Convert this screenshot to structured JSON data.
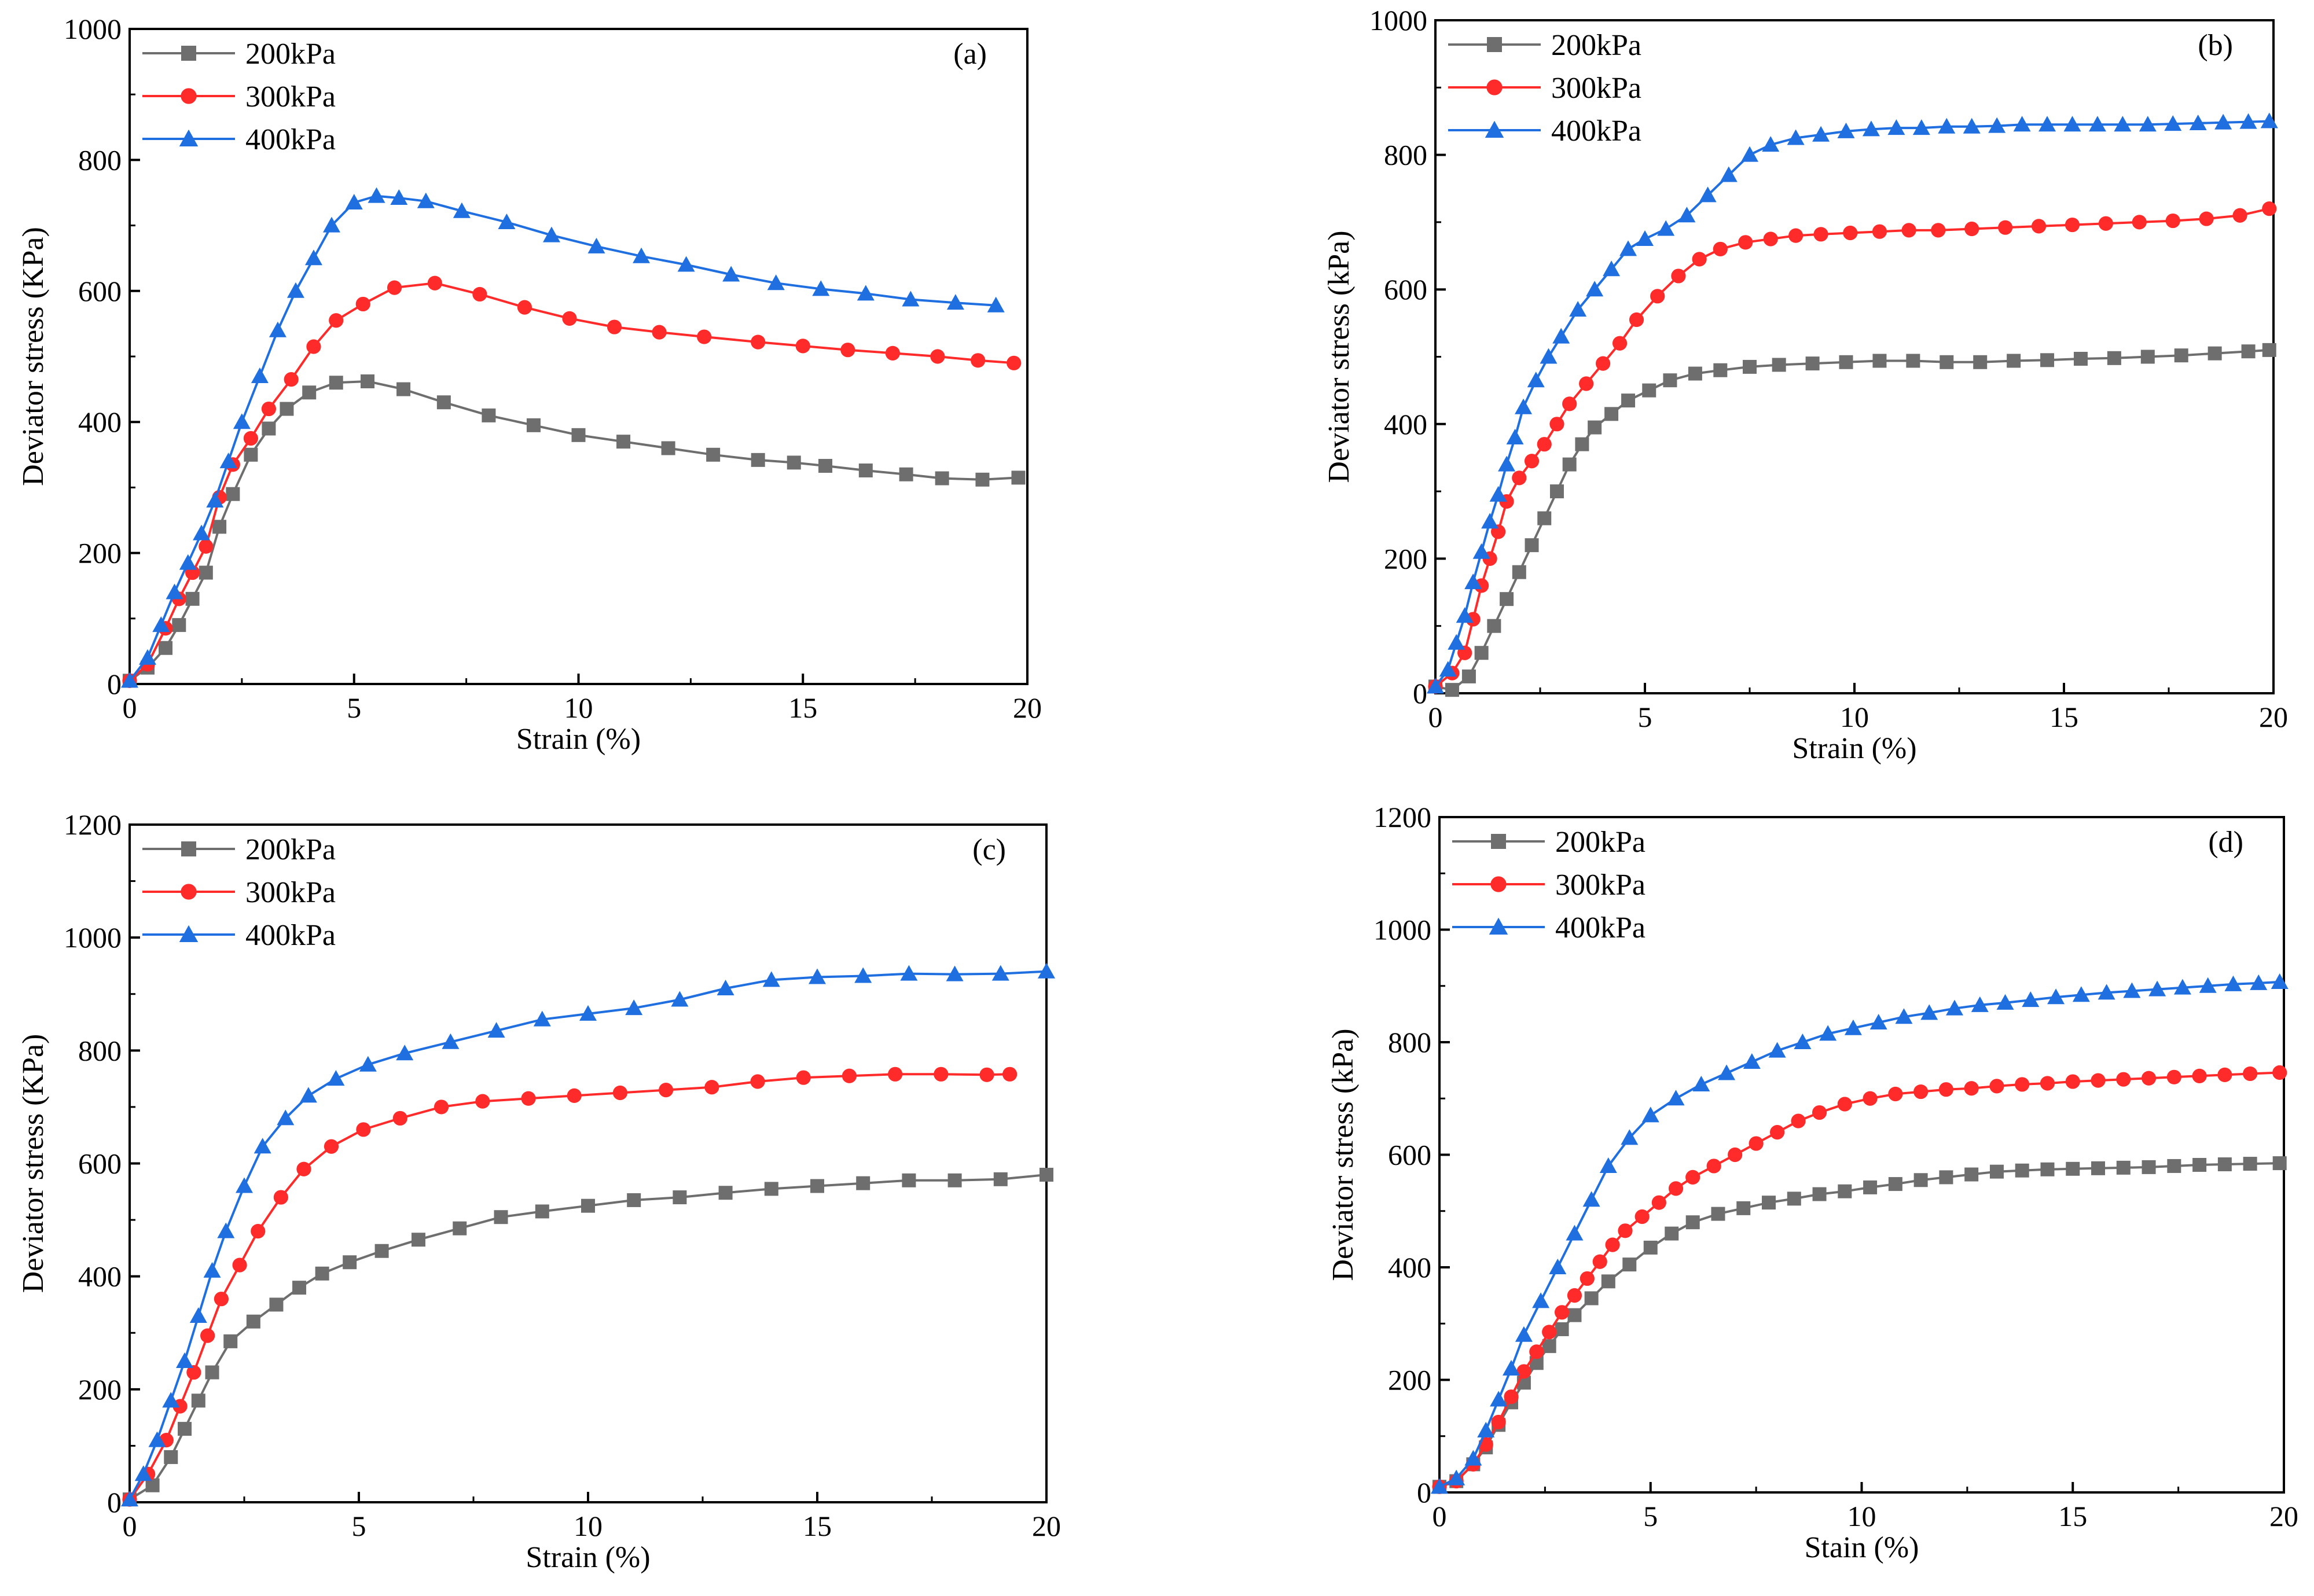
{
  "chart_data": [
    {
      "type": "line",
      "panel_label": "(a)",
      "title": "",
      "xlabel": "Strain (%)",
      "ylabel": "Deviator stress (KPa)",
      "xlim": [
        0,
        20
      ],
      "ylim": [
        0,
        1000
      ],
      "xticks": [
        0,
        5,
        10,
        15,
        20
      ],
      "yticks": [
        0,
        200,
        400,
        600,
        800,
        1000
      ],
      "legend_position": "top-left",
      "series": [
        {
          "name": "200kPa",
          "color": "#6e6e6e",
          "marker": "square",
          "x": [
            0,
            0.4,
            0.8,
            1.1,
            1.4,
            1.7,
            2.0,
            2.3,
            2.7,
            3.1,
            3.5,
            4.0,
            4.6,
            5.3,
            6.1,
            7.0,
            8.0,
            9.0,
            10.0,
            11.0,
            12.0,
            13.0,
            14.0,
            14.8,
            15.5,
            16.4,
            17.3,
            18.1,
            19.0,
            19.8
          ],
          "y": [
            5,
            25,
            55,
            90,
            130,
            170,
            240,
            290,
            350,
            390,
            420,
            445,
            460,
            462,
            450,
            430,
            410,
            395,
            380,
            370,
            360,
            350,
            342,
            338,
            333,
            326,
            320,
            314,
            312,
            315
          ]
        },
        {
          "name": "300kPa",
          "color": "#ff2a2a",
          "marker": "circle",
          "x": [
            0,
            0.4,
            0.8,
            1.1,
            1.4,
            1.7,
            2.0,
            2.3,
            2.7,
            3.1,
            3.6,
            4.1,
            4.6,
            5.2,
            5.9,
            6.8,
            7.8,
            8.8,
            9.8,
            10.8,
            11.8,
            12.8,
            14.0,
            15.0,
            16.0,
            17.0,
            18.0,
            18.9,
            19.7
          ],
          "y": [
            5,
            30,
            85,
            130,
            170,
            210,
            285,
            335,
            375,
            420,
            465,
            515,
            555,
            580,
            605,
            612,
            595,
            575,
            558,
            545,
            537,
            530,
            522,
            516,
            510,
            505,
            500,
            494,
            490
          ]
        },
        {
          "name": "400kPa",
          "color": "#1f6fe0",
          "marker": "triangle",
          "x": [
            0,
            0.4,
            0.7,
            1.0,
            1.3,
            1.6,
            1.9,
            2.2,
            2.5,
            2.9,
            3.3,
            3.7,
            4.1,
            4.5,
            5.0,
            5.5,
            6.0,
            6.6,
            7.4,
            8.4,
            9.4,
            10.4,
            11.4,
            12.4,
            13.4,
            14.4,
            15.4,
            16.4,
            17.4,
            18.4,
            19.3
          ],
          "y": [
            5,
            40,
            90,
            140,
            185,
            230,
            280,
            340,
            400,
            470,
            540,
            600,
            650,
            700,
            735,
            745,
            742,
            737,
            722,
            705,
            685,
            668,
            653,
            640,
            625,
            612,
            603,
            596,
            587,
            582,
            578
          ]
        }
      ]
    },
    {
      "type": "line",
      "panel_label": "(b)",
      "title": "",
      "xlabel": "Strain (%)",
      "ylabel": "Deviator stress (kPa)",
      "xlim": [
        0,
        20
      ],
      "ylim": [
        0,
        1000
      ],
      "xticks": [
        0,
        5,
        10,
        15,
        20
      ],
      "yticks": [
        0,
        200,
        400,
        600,
        800,
        1000
      ],
      "legend_position": "top-left",
      "series": [
        {
          "name": "200kPa",
          "color": "#6e6e6e",
          "marker": "square",
          "x": [
            0,
            0.4,
            0.8,
            1.1,
            1.4,
            1.7,
            2.0,
            2.3,
            2.6,
            2.9,
            3.2,
            3.5,
            3.8,
            4.2,
            4.6,
            5.1,
            5.6,
            6.2,
            6.8,
            7.5,
            8.2,
            9.0,
            9.8,
            10.6,
            11.4,
            12.2,
            13.0,
            13.8,
            14.6,
            15.4,
            16.2,
            17.0,
            17.8,
            18.6,
            19.4,
            19.9
          ],
          "y": [
            10,
            5,
            25,
            60,
            100,
            140,
            180,
            220,
            260,
            300,
            340,
            370,
            395,
            415,
            435,
            450,
            465,
            475,
            480,
            485,
            488,
            490,
            492,
            494,
            494,
            492,
            492,
            494,
            495,
            497,
            498,
            500,
            502,
            505,
            508,
            510
          ]
        },
        {
          "name": "300kPa",
          "color": "#ff2a2a",
          "marker": "circle",
          "x": [
            0,
            0.4,
            0.7,
            0.9,
            1.1,
            1.3,
            1.5,
            1.7,
            2.0,
            2.3,
            2.6,
            2.9,
            3.2,
            3.6,
            4.0,
            4.4,
            4.8,
            5.3,
            5.8,
            6.3,
            6.8,
            7.4,
            8.0,
            8.6,
            9.2,
            9.9,
            10.6,
            11.3,
            12.0,
            12.8,
            13.6,
            14.4,
            15.2,
            16.0,
            16.8,
            17.6,
            18.4,
            19.2,
            19.9
          ],
          "y": [
            10,
            30,
            60,
            110,
            160,
            200,
            240,
            285,
            320,
            345,
            370,
            400,
            430,
            460,
            490,
            520,
            555,
            590,
            620,
            645,
            660,
            670,
            675,
            680,
            682,
            684,
            686,
            688,
            688,
            690,
            692,
            694,
            696,
            698,
            700,
            702,
            705,
            710,
            720
          ]
        },
        {
          "name": "400kPa",
          "color": "#1f6fe0",
          "marker": "triangle",
          "x": [
            0,
            0.3,
            0.5,
            0.7,
            0.9,
            1.1,
            1.3,
            1.5,
            1.7,
            1.9,
            2.1,
            2.4,
            2.7,
            3.0,
            3.4,
            3.8,
            4.2,
            4.6,
            5.0,
            5.5,
            6.0,
            6.5,
            7.0,
            7.5,
            8.0,
            8.6,
            9.2,
            9.8,
            10.4,
            11.0,
            11.6,
            12.2,
            12.8,
            13.4,
            14.0,
            14.6,
            15.2,
            15.8,
            16.4,
            17.0,
            17.6,
            18.2,
            18.8,
            19.4,
            19.9
          ],
          "y": [
            10,
            35,
            75,
            115,
            165,
            210,
            255,
            295,
            340,
            380,
            425,
            465,
            500,
            530,
            570,
            600,
            630,
            660,
            675,
            690,
            710,
            740,
            770,
            800,
            815,
            825,
            830,
            835,
            838,
            840,
            840,
            842,
            842,
            843,
            845,
            845,
            845,
            845,
            845,
            845,
            846,
            847,
            848,
            849,
            850
          ]
        }
      ]
    },
    {
      "type": "line",
      "panel_label": "(c)",
      "title": "",
      "xlabel": "Strain (%)",
      "ylabel": "Deviator stress (KPa)",
      "xlim": [
        0,
        20
      ],
      "ylim": [
        0,
        1200
      ],
      "xticks": [
        0,
        5,
        10,
        15,
        20
      ],
      "yticks": [
        0,
        200,
        400,
        600,
        800,
        1000,
        1200
      ],
      "legend_position": "top-left",
      "series": [
        {
          "name": "200kPa",
          "color": "#6e6e6e",
          "marker": "square",
          "x": [
            0,
            0.5,
            0.9,
            1.2,
            1.5,
            1.8,
            2.2,
            2.7,
            3.2,
            3.7,
            4.2,
            4.8,
            5.5,
            6.3,
            7.2,
            8.1,
            9.0,
            10.0,
            11.0,
            12.0,
            13.0,
            14.0,
            15.0,
            16.0,
            17.0,
            18.0,
            19.0,
            20.0
          ],
          "y": [
            5,
            30,
            80,
            130,
            180,
            230,
            285,
            320,
            350,
            380,
            405,
            425,
            445,
            465,
            485,
            505,
            515,
            525,
            535,
            540,
            548,
            555,
            560,
            565,
            570,
            570,
            572,
            580
          ]
        },
        {
          "name": "300kPa",
          "color": "#ff2a2a",
          "marker": "circle",
          "x": [
            0,
            0.4,
            0.8,
            1.1,
            1.4,
            1.7,
            2.0,
            2.4,
            2.8,
            3.3,
            3.8,
            4.4,
            5.1,
            5.9,
            6.8,
            7.7,
            8.7,
            9.7,
            10.7,
            11.7,
            12.7,
            13.7,
            14.7,
            15.7,
            16.7,
            17.7,
            18.7,
            19.2
          ],
          "y": [
            5,
            50,
            110,
            170,
            230,
            295,
            360,
            420,
            480,
            540,
            590,
            630,
            660,
            680,
            700,
            710,
            715,
            720,
            725,
            730,
            735,
            745,
            752,
            755,
            758,
            758,
            757,
            758
          ]
        },
        {
          "name": "400kPa",
          "color": "#1f6fe0",
          "marker": "triangle",
          "x": [
            0,
            0.3,
            0.6,
            0.9,
            1.2,
            1.5,
            1.8,
            2.1,
            2.5,
            2.9,
            3.4,
            3.9,
            4.5,
            5.2,
            6.0,
            7.0,
            8.0,
            9.0,
            10.0,
            11.0,
            12.0,
            13.0,
            14.0,
            15.0,
            16.0,
            17.0,
            18.0,
            19.0,
            20.0
          ],
          "y": [
            5,
            50,
            110,
            180,
            250,
            330,
            410,
            480,
            560,
            630,
            680,
            720,
            750,
            775,
            795,
            815,
            835,
            855,
            865,
            875,
            890,
            910,
            925,
            930,
            932,
            936,
            935,
            936,
            940
          ]
        }
      ]
    },
    {
      "type": "line",
      "panel_label": "(d)",
      "title": "",
      "xlabel": "Stain (%)",
      "ylabel": "Deviator stress (kPa)",
      "xlim": [
        0,
        20
      ],
      "ylim": [
        0,
        1200
      ],
      "xticks": [
        0,
        5,
        10,
        15,
        20
      ],
      "yticks": [
        0,
        200,
        400,
        600,
        800,
        1000,
        1200
      ],
      "legend_position": "top-left",
      "series": [
        {
          "name": "200kPa",
          "color": "#6e6e6e",
          "marker": "square",
          "x": [
            0,
            0.4,
            0.8,
            1.1,
            1.4,
            1.7,
            2.0,
            2.3,
            2.6,
            2.9,
            3.2,
            3.6,
            4.0,
            4.5,
            5.0,
            5.5,
            6.0,
            6.6,
            7.2,
            7.8,
            8.4,
            9.0,
            9.6,
            10.2,
            10.8,
            11.4,
            12.0,
            12.6,
            13.2,
            13.8,
            14.4,
            15.0,
            15.6,
            16.2,
            16.8,
            17.4,
            18.0,
            18.6,
            19.2,
            19.9
          ],
          "y": [
            10,
            20,
            50,
            80,
            120,
            160,
            195,
            230,
            260,
            290,
            315,
            345,
            375,
            405,
            435,
            460,
            480,
            495,
            505,
            515,
            522,
            530,
            535,
            542,
            548,
            555,
            560,
            565,
            570,
            572,
            574,
            575,
            576,
            577,
            578,
            580,
            582,
            583,
            584,
            585
          ]
        },
        {
          "name": "300kPa",
          "color": "#ff2a2a",
          "marker": "circle",
          "x": [
            0,
            0.4,
            0.8,
            1.1,
            1.4,
            1.7,
            2.0,
            2.3,
            2.6,
            2.9,
            3.2,
            3.5,
            3.8,
            4.1,
            4.4,
            4.8,
            5.2,
            5.6,
            6.0,
            6.5,
            7.0,
            7.5,
            8.0,
            8.5,
            9.0,
            9.6,
            10.2,
            10.8,
            11.4,
            12.0,
            12.6,
            13.2,
            13.8,
            14.4,
            15.0,
            15.6,
            16.2,
            16.8,
            17.4,
            18.0,
            18.6,
            19.2,
            19.9
          ],
          "y": [
            10,
            20,
            50,
            85,
            125,
            170,
            215,
            250,
            285,
            320,
            350,
            380,
            410,
            440,
            465,
            490,
            515,
            540,
            560,
            580,
            600,
            620,
            640,
            660,
            675,
            690,
            700,
            708,
            712,
            716,
            718,
            722,
            725,
            727,
            730,
            732,
            734,
            736,
            738,
            740,
            742,
            744,
            746
          ]
        },
        {
          "name": "400kPa",
          "color": "#1f6fe0",
          "marker": "triangle",
          "x": [
            0,
            0.4,
            0.8,
            1.1,
            1.4,
            1.7,
            2.0,
            2.4,
            2.8,
            3.2,
            3.6,
            4.0,
            4.5,
            5.0,
            5.6,
            6.2,
            6.8,
            7.4,
            8.0,
            8.6,
            9.2,
            9.8,
            10.4,
            11.0,
            11.6,
            12.2,
            12.8,
            13.4,
            14.0,
            14.6,
            15.2,
            15.8,
            16.4,
            17.0,
            17.6,
            18.2,
            18.8,
            19.4,
            19.9
          ],
          "y": [
            10,
            25,
            60,
            110,
            165,
            220,
            280,
            340,
            400,
            460,
            520,
            580,
            630,
            670,
            700,
            725,
            745,
            765,
            785,
            800,
            815,
            825,
            835,
            845,
            852,
            860,
            866,
            870,
            875,
            880,
            884,
            888,
            891,
            894,
            897,
            900,
            903,
            905,
            907
          ]
        }
      ]
    }
  ]
}
